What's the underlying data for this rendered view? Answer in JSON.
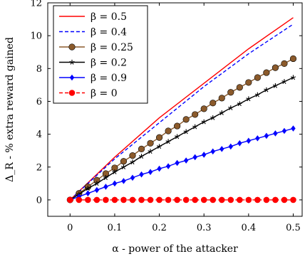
{
  "chart_data": {
    "type": "line",
    "xlabel": "α - power of the attacker",
    "ylabel": "Δ_R - % extra reward gained",
    "xlim": [
      -0.05,
      0.52
    ],
    "ylim": [
      -1,
      12
    ],
    "x_ticks": [
      0,
      0.1,
      0.2,
      0.3,
      0.4,
      0.5
    ],
    "x_tick_labels": [
      "0",
      "0.1",
      "0.2",
      "0.3",
      "0.4",
      "0.5"
    ],
    "y_ticks": [
      0,
      2,
      4,
      6,
      8,
      10,
      12
    ],
    "y_tick_labels": [
      "0",
      "2",
      "4",
      "6",
      "8",
      "10",
      "12"
    ],
    "grid": false,
    "legend_position": "top-left",
    "series": [
      {
        "name": "β = 0.5",
        "color": "#ff0000",
        "line": "solid",
        "marker": "none",
        "x": [
          0,
          0.1,
          0.2,
          0.3,
          0.4,
          0.5
        ],
        "y": [
          0,
          2.6,
          5.0,
          7.1,
          9.2,
          11.1
        ]
      },
      {
        "name": "β = 0.4",
        "color": "#0000ff",
        "line": "dashed",
        "marker": "none",
        "x": [
          0,
          0.1,
          0.2,
          0.3,
          0.4,
          0.5
        ],
        "y": [
          0,
          2.5,
          4.7,
          6.9,
          8.9,
          10.7
        ]
      },
      {
        "name": "β = 0.25",
        "color": "#8b5a2b",
        "line": "solid",
        "marker": "circle",
        "x": [
          0,
          0.02,
          0.04,
          0.06,
          0.08,
          0.1,
          0.12,
          0.14,
          0.16,
          0.18,
          0.2,
          0.22,
          0.24,
          0.26,
          0.28,
          0.3,
          0.32,
          0.34,
          0.36,
          0.38,
          0.4,
          0.42,
          0.44,
          0.46,
          0.48,
          0.5
        ],
        "y": [
          0,
          0.4,
          0.8,
          1.2,
          1.6,
          1.95,
          2.35,
          2.7,
          3.1,
          3.45,
          3.8,
          4.2,
          4.5,
          4.9,
          5.2,
          5.55,
          5.9,
          6.2,
          6.55,
          6.85,
          7.15,
          7.45,
          7.75,
          8.05,
          8.3,
          8.6
        ]
      },
      {
        "name": "β = 0.2",
        "color": "#000000",
        "line": "solid",
        "marker": "star",
        "x": [
          0,
          0.02,
          0.04,
          0.06,
          0.08,
          0.1,
          0.12,
          0.14,
          0.16,
          0.18,
          0.2,
          0.22,
          0.24,
          0.26,
          0.28,
          0.3,
          0.32,
          0.34,
          0.36,
          0.38,
          0.4,
          0.42,
          0.44,
          0.46,
          0.48,
          0.5
        ],
        "y": [
          0,
          0.35,
          0.7,
          1.0,
          1.35,
          1.7,
          2.0,
          2.3,
          2.65,
          2.95,
          3.25,
          3.55,
          3.85,
          4.15,
          4.45,
          4.75,
          5.0,
          5.3,
          5.6,
          5.85,
          6.15,
          6.4,
          6.7,
          6.95,
          7.2,
          7.45
        ]
      },
      {
        "name": "β = 0.9",
        "color": "#0000ff",
        "line": "solid",
        "marker": "diamond",
        "x": [
          0,
          0.02,
          0.04,
          0.06,
          0.08,
          0.1,
          0.12,
          0.14,
          0.16,
          0.18,
          0.2,
          0.22,
          0.24,
          0.26,
          0.28,
          0.3,
          0.32,
          0.34,
          0.36,
          0.38,
          0.4,
          0.42,
          0.44,
          0.46,
          0.48,
          0.5
        ],
        "y": [
          0,
          0.2,
          0.4,
          0.6,
          0.8,
          1.0,
          1.15,
          1.35,
          1.55,
          1.7,
          1.9,
          2.05,
          2.25,
          2.4,
          2.6,
          2.75,
          2.95,
          3.1,
          3.25,
          3.45,
          3.6,
          3.75,
          3.9,
          4.05,
          4.2,
          4.35
        ]
      },
      {
        "name": "β = 0",
        "color": "#ff0000",
        "line": "dashed",
        "marker": "dot",
        "x": [
          0,
          0.02,
          0.04,
          0.06,
          0.08,
          0.1,
          0.12,
          0.14,
          0.16,
          0.18,
          0.2,
          0.22,
          0.24,
          0.26,
          0.28,
          0.3,
          0.32,
          0.34,
          0.36,
          0.38,
          0.4,
          0.42,
          0.44,
          0.46,
          0.48,
          0.5
        ],
        "y": [
          0,
          0,
          0,
          0,
          0,
          0,
          0,
          0,
          0,
          0,
          0,
          0,
          0,
          0,
          0,
          0,
          0,
          0,
          0,
          0,
          0,
          0,
          0,
          0,
          0,
          0
        ]
      }
    ]
  }
}
